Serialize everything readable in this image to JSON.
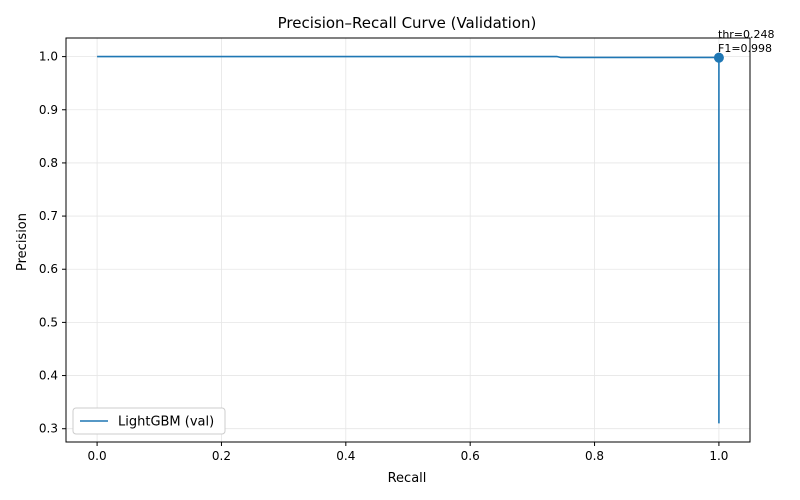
{
  "chart_data": {
    "type": "line",
    "title": "Precision–Recall Curve (Validation)",
    "xlabel": "Recall",
    "ylabel": "Precision",
    "xlim": [
      -0.05,
      1.05
    ],
    "ylim": [
      0.275,
      1.035
    ],
    "xticks": [
      0.0,
      0.2,
      0.4,
      0.6,
      0.8,
      1.0
    ],
    "xtick_labels": [
      "0.0",
      "0.2",
      "0.4",
      "0.6",
      "0.8",
      "1.0"
    ],
    "yticks": [
      0.3,
      0.4,
      0.5,
      0.6,
      0.7,
      0.8,
      0.9,
      1.0
    ],
    "ytick_labels": [
      "0.3",
      "0.4",
      "0.5",
      "0.6",
      "0.7",
      "0.8",
      "0.9",
      "1.0"
    ],
    "grid": true,
    "legend_position": "lower-left",
    "series": [
      {
        "name": "LightGBM (val)",
        "color": "#1f77b4",
        "points": [
          [
            0.0,
            1.0
          ],
          [
            0.74,
            1.0
          ],
          [
            0.745,
            0.9985
          ],
          [
            1.0,
            0.9985
          ],
          [
            1.0,
            0.31
          ]
        ]
      }
    ],
    "highlight": {
      "x": 1.0,
      "y": 0.998,
      "color": "#1f77b4",
      "label_line1": "thr=0.248",
      "label_line2": "F1=0.998"
    }
  }
}
